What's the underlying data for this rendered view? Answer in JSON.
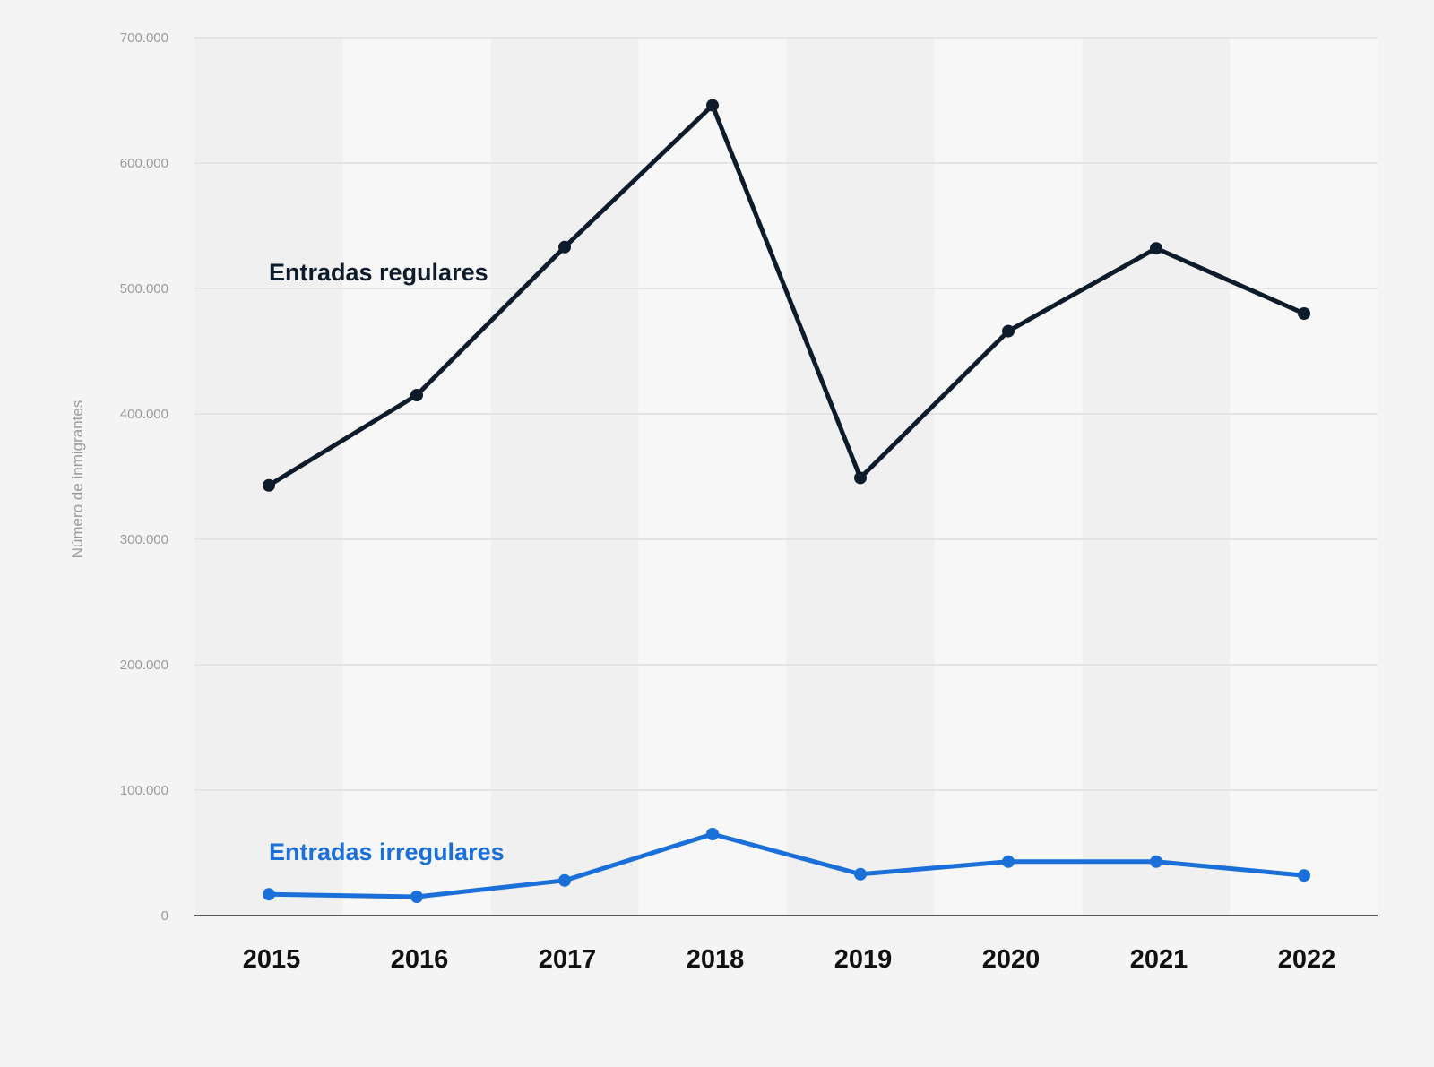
{
  "chart_data": {
    "type": "line",
    "categories": [
      "2015",
      "2016",
      "2017",
      "2018",
      "2019",
      "2020",
      "2021",
      "2022"
    ],
    "series": [
      {
        "name": "Entradas regulares",
        "color": "#0d1b2a",
        "values": [
          343000,
          415000,
          533000,
          646000,
          349000,
          466000,
          532000,
          480000
        ]
      },
      {
        "name": "Entradas irregulares",
        "color": "#1a6fd8",
        "values": [
          17000,
          15000,
          28000,
          65000,
          33000,
          43000,
          43000,
          32000
        ]
      }
    ],
    "ylabel": "Número de inmigrantes",
    "yticks": [
      {
        "value": 0,
        "label": "0"
      },
      {
        "value": 100000,
        "label": "100.000"
      },
      {
        "value": 200000,
        "label": "200.000"
      },
      {
        "value": 300000,
        "label": "300.000"
      },
      {
        "value": 400000,
        "label": "400.000"
      },
      {
        "value": 500000,
        "label": "500.000"
      },
      {
        "value": 600000,
        "label": "600.000"
      },
      {
        "value": 700000,
        "label": "700.000"
      }
    ],
    "ylim": [
      0,
      700000
    ],
    "grid": true,
    "legend": "inline labels"
  }
}
